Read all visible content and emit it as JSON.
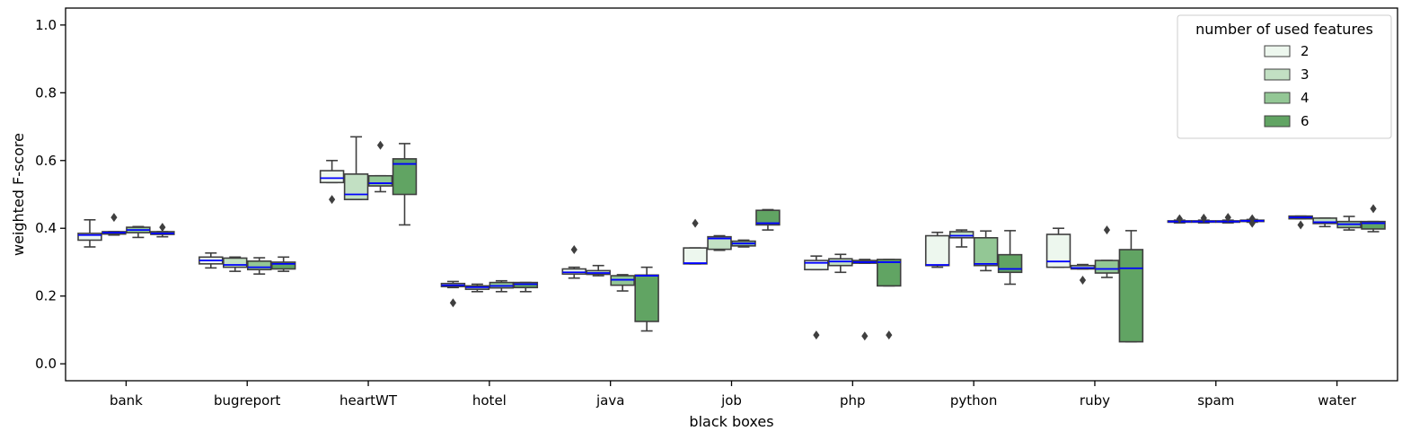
{
  "chart_data": {
    "type": "box",
    "xlabel": "black boxes",
    "ylabel": "weighted F-score",
    "ylim": [
      -0.05,
      1.05
    ],
    "yticks": [
      0.0,
      0.2,
      0.4,
      0.6,
      0.8,
      1.0
    ],
    "ytick_labels": [
      "0.0",
      "0.2",
      "0.4",
      "0.6",
      "0.8",
      "1.0"
    ],
    "categories": [
      "bank",
      "bugreport",
      "heartWT",
      "hotel",
      "java",
      "job",
      "php",
      "python",
      "ruby",
      "spam",
      "water"
    ],
    "legend": {
      "title": "number of used features",
      "placement": "top-right",
      "entries": [
        "2",
        "3",
        "4",
        "6"
      ]
    },
    "colors": [
      "#edf7ee",
      "#c2e0c3",
      "#93c795",
      "#61a463"
    ],
    "median_color": "#0000ff",
    "series": [
      {
        "name": "2",
        "boxes": [
          {
            "q1": 0.365,
            "median": 0.38,
            "q3": 0.385,
            "whislo": 0.345,
            "whishi": 0.425,
            "fliers": []
          },
          {
            "q1": 0.295,
            "median": 0.305,
            "q3": 0.315,
            "whislo": 0.283,
            "whishi": 0.327,
            "fliers": []
          },
          {
            "q1": 0.535,
            "median": 0.548,
            "q3": 0.57,
            "whislo": 0.535,
            "whishi": 0.6,
            "fliers": [
              0.485
            ]
          },
          {
            "q1": 0.228,
            "median": 0.232,
            "q3": 0.237,
            "whislo": 0.225,
            "whishi": 0.243,
            "fliers": [
              0.18
            ]
          },
          {
            "q1": 0.265,
            "median": 0.27,
            "q3": 0.28,
            "whislo": 0.253,
            "whishi": 0.285,
            "fliers": [
              0.337
            ]
          },
          {
            "q1": 0.295,
            "median": 0.297,
            "q3": 0.342,
            "whislo": 0.295,
            "whishi": 0.342,
            "fliers": [
              0.415
            ]
          },
          {
            "q1": 0.278,
            "median": 0.298,
            "q3": 0.305,
            "whislo": 0.278,
            "whishi": 0.318,
            "fliers": [
              0.085
            ]
          },
          {
            "q1": 0.29,
            "median": 0.292,
            "q3": 0.378,
            "whislo": 0.285,
            "whishi": 0.388,
            "fliers": []
          },
          {
            "q1": 0.285,
            "median": 0.302,
            "q3": 0.382,
            "whislo": 0.285,
            "whishi": 0.4,
            "fliers": []
          },
          {
            "q1": 0.418,
            "median": 0.42,
            "q3": 0.422,
            "whislo": 0.416,
            "whishi": 0.424,
            "fliers": [
              0.428
            ]
          },
          {
            "q1": 0.428,
            "median": 0.432,
            "q3": 0.436,
            "whislo": 0.428,
            "whishi": 0.436,
            "fliers": [
              0.41
            ]
          }
        ]
      },
      {
        "name": "3",
        "boxes": [
          {
            "q1": 0.383,
            "median": 0.387,
            "q3": 0.39,
            "whislo": 0.38,
            "whishi": 0.39,
            "fliers": [
              0.432
            ]
          },
          {
            "q1": 0.285,
            "median": 0.292,
            "q3": 0.312,
            "whislo": 0.273,
            "whishi": 0.315,
            "fliers": []
          },
          {
            "q1": 0.485,
            "median": 0.5,
            "q3": 0.56,
            "whislo": 0.485,
            "whishi": 0.67,
            "fliers": []
          },
          {
            "q1": 0.22,
            "median": 0.226,
            "q3": 0.23,
            "whislo": 0.213,
            "whishi": 0.235,
            "fliers": []
          },
          {
            "q1": 0.264,
            "median": 0.268,
            "q3": 0.275,
            "whislo": 0.26,
            "whishi": 0.29,
            "fliers": []
          },
          {
            "q1": 0.338,
            "median": 0.37,
            "q3": 0.375,
            "whislo": 0.335,
            "whishi": 0.378,
            "fliers": []
          },
          {
            "q1": 0.29,
            "median": 0.302,
            "q3": 0.31,
            "whislo": 0.27,
            "whishi": 0.323,
            "fliers": []
          },
          {
            "q1": 0.372,
            "median": 0.378,
            "q3": 0.39,
            "whislo": 0.345,
            "whishi": 0.395,
            "fliers": []
          },
          {
            "q1": 0.28,
            "median": 0.283,
            "q3": 0.29,
            "whislo": 0.28,
            "whishi": 0.293,
            "fliers": [
              0.247
            ]
          },
          {
            "q1": 0.418,
            "median": 0.42,
            "q3": 0.422,
            "whislo": 0.416,
            "whishi": 0.424,
            "fliers": [
              0.43
            ]
          },
          {
            "q1": 0.414,
            "median": 0.418,
            "q3": 0.43,
            "whislo": 0.405,
            "whishi": 0.43,
            "fliers": []
          }
        ]
      },
      {
        "name": "4",
        "boxes": [
          {
            "q1": 0.387,
            "median": 0.395,
            "q3": 0.403,
            "whislo": 0.373,
            "whishi": 0.405,
            "fliers": []
          },
          {
            "q1": 0.278,
            "median": 0.285,
            "q3": 0.303,
            "whislo": 0.265,
            "whishi": 0.313,
            "fliers": []
          },
          {
            "q1": 0.525,
            "median": 0.533,
            "q3": 0.555,
            "whislo": 0.508,
            "whishi": 0.555,
            "fliers": [
              0.645
            ]
          },
          {
            "q1": 0.224,
            "median": 0.23,
            "q3": 0.24,
            "whislo": 0.213,
            "whishi": 0.245,
            "fliers": []
          },
          {
            "q1": 0.232,
            "median": 0.248,
            "q3": 0.26,
            "whislo": 0.215,
            "whishi": 0.263,
            "fliers": []
          },
          {
            "q1": 0.348,
            "median": 0.355,
            "q3": 0.362,
            "whislo": 0.345,
            "whishi": 0.365,
            "fliers": []
          },
          {
            "q1": 0.297,
            "median": 0.3,
            "q3": 0.305,
            "whislo": 0.297,
            "whishi": 0.308,
            "fliers": [
              0.082
            ]
          },
          {
            "q1": 0.29,
            "median": 0.295,
            "q3": 0.372,
            "whislo": 0.275,
            "whishi": 0.392,
            "fliers": []
          },
          {
            "q1": 0.268,
            "median": 0.28,
            "q3": 0.305,
            "whislo": 0.255,
            "whishi": 0.305,
            "fliers": [
              0.395
            ]
          },
          {
            "q1": 0.418,
            "median": 0.42,
            "q3": 0.422,
            "whislo": 0.416,
            "whishi": 0.424,
            "fliers": [
              0.432
            ]
          },
          {
            "q1": 0.402,
            "median": 0.412,
            "q3": 0.42,
            "whislo": 0.395,
            "whishi": 0.435,
            "fliers": []
          }
        ]
      },
      {
        "name": "6",
        "boxes": [
          {
            "q1": 0.382,
            "median": 0.385,
            "q3": 0.39,
            "whislo": 0.375,
            "whishi": 0.39,
            "fliers": [
              0.403
            ]
          },
          {
            "q1": 0.28,
            "median": 0.295,
            "q3": 0.3,
            "whislo": 0.273,
            "whishi": 0.315,
            "fliers": []
          },
          {
            "q1": 0.5,
            "median": 0.59,
            "q3": 0.605,
            "whislo": 0.41,
            "whishi": 0.65,
            "fliers": []
          },
          {
            "q1": 0.225,
            "median": 0.235,
            "q3": 0.24,
            "whislo": 0.213,
            "whishi": 0.24,
            "fliers": []
          },
          {
            "q1": 0.125,
            "median": 0.26,
            "q3": 0.262,
            "whislo": 0.097,
            "whishi": 0.285,
            "fliers": []
          },
          {
            "q1": 0.41,
            "median": 0.415,
            "q3": 0.453,
            "whislo": 0.395,
            "whishi": 0.455,
            "fliers": []
          },
          {
            "q1": 0.23,
            "median": 0.3,
            "q3": 0.308,
            "whislo": 0.23,
            "whishi": 0.308,
            "fliers": [
              0.085
            ]
          },
          {
            "q1": 0.27,
            "median": 0.28,
            "q3": 0.322,
            "whislo": 0.235,
            "whishi": 0.393,
            "fliers": []
          },
          {
            "q1": 0.065,
            "median": 0.282,
            "q3": 0.337,
            "whislo": 0.065,
            "whishi": 0.393,
            "fliers": []
          },
          {
            "q1": 0.42,
            "median": 0.422,
            "q3": 0.424,
            "whislo": 0.418,
            "whishi": 0.426,
            "fliers": [
              0.428,
              0.415
            ]
          },
          {
            "q1": 0.398,
            "median": 0.415,
            "q3": 0.42,
            "whislo": 0.39,
            "whishi": 0.42,
            "fliers": [
              0.458
            ]
          }
        ]
      }
    ]
  }
}
